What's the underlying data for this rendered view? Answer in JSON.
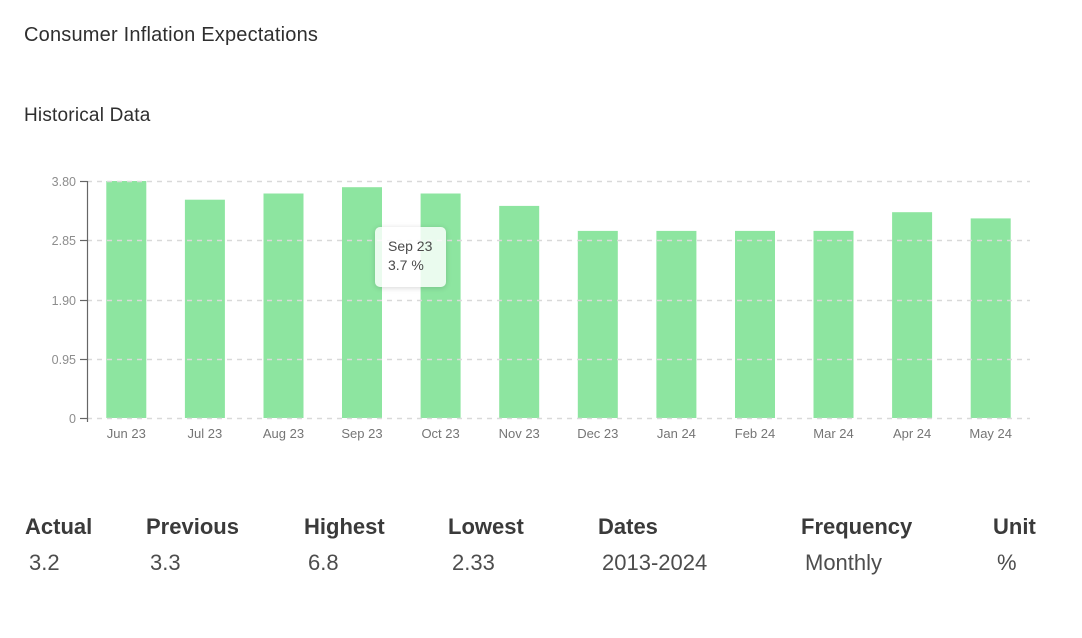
{
  "page": {
    "title": "Consumer Inflation Expectations",
    "section_title": "Historical Data"
  },
  "chart_data": {
    "type": "bar",
    "title": "Consumer Inflation Expectations - Historical Data",
    "categories": [
      "Jun 23",
      "Jul 23",
      "Aug 23",
      "Sep 23",
      "Oct 23",
      "Nov 23",
      "Dec 23",
      "Jan 24",
      "Feb 24",
      "Mar 24",
      "Apr 24",
      "May 24"
    ],
    "values": [
      3.8,
      3.5,
      3.6,
      3.7,
      3.6,
      3.4,
      3.0,
      3.0,
      3.0,
      3.0,
      3.3,
      3.2
    ],
    "unit": "%",
    "xlabel": "",
    "ylabel": "",
    "ylim": [
      0,
      3.8
    ],
    "yticks": [
      0,
      0.95,
      1.9,
      2.85,
      3.8
    ],
    "ytick_labels": [
      "0",
      "0.95",
      "1.90",
      "2.85",
      "3.80"
    ],
    "grid": true,
    "grid_style": "dashed",
    "legend_position": "none",
    "colors": {
      "bar": "#8de5a0",
      "gridline": "#d9d9d9",
      "axis": "#666666",
      "ytick_text": "#8d8d8d",
      "xtick_text": "#757575"
    },
    "tooltip": {
      "label": "Sep 23",
      "value": "3.7 %",
      "category_index": 3
    }
  },
  "stats": {
    "columns": [
      {
        "label": "Actual",
        "value": "3.2"
      },
      {
        "label": "Previous",
        "value": "3.3"
      },
      {
        "label": "Highest",
        "value": "6.8"
      },
      {
        "label": "Lowest",
        "value": "2.33"
      },
      {
        "label": "Dates",
        "value": "2013-2024"
      },
      {
        "label": "Frequency",
        "value": "Monthly"
      },
      {
        "label": "Unit",
        "value": "%"
      }
    ]
  }
}
